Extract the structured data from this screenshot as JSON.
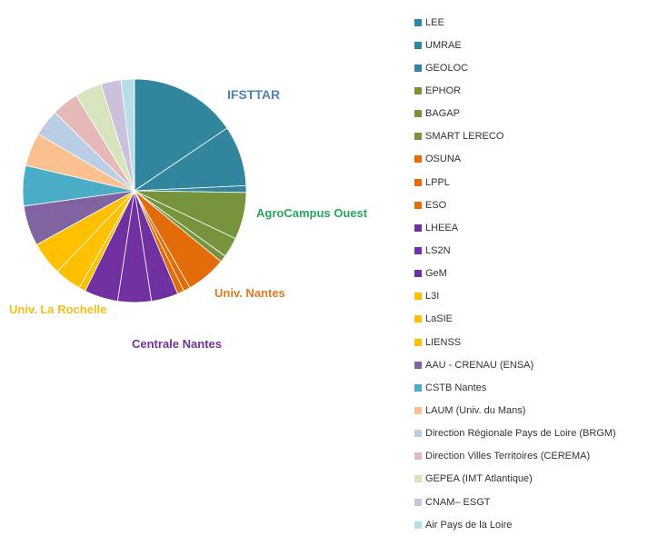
{
  "chart_data": {
    "type": "pie",
    "groups": [
      {
        "name": "IFSTTAR",
        "color": "#4F81BD"
      },
      {
        "name": "AgroCampus Ouest",
        "color": "#26A65B"
      },
      {
        "name": "Univ. Nantes",
        "color": "#E07B22"
      },
      {
        "name": "Centrale Nantes",
        "color": "#7030A0"
      },
      {
        "name": "Univ. La Rochelle",
        "color": "#F5BE14"
      }
    ],
    "slices": [
      {
        "label": "LEE",
        "value": 16,
        "color": "#31859C"
      },
      {
        "label": "UMRAE",
        "value": 9,
        "color": "#31859C"
      },
      {
        "label": "GEOLOC",
        "value": 1,
        "color": "#31859C"
      },
      {
        "label": "EPHOR",
        "value": 7,
        "color": "#77933C"
      },
      {
        "label": "BAGAP",
        "value": 3,
        "color": "#77933C"
      },
      {
        "label": "SMART LERECO",
        "value": 1,
        "color": "#77933C"
      },
      {
        "label": "OSUNA",
        "value": 6,
        "color": "#E36C09"
      },
      {
        "label": "LPPL",
        "value": 1,
        "color": "#E36C09"
      },
      {
        "label": "ESO",
        "value": 1,
        "color": "#E36C09"
      },
      {
        "label": "LHEEA",
        "value": 4,
        "color": "#7030A0"
      },
      {
        "label": "LS2N",
        "value": 5,
        "color": "#7030A0"
      },
      {
        "label": "GeM",
        "value": 5,
        "color": "#7030A0"
      },
      {
        "label": "L3I",
        "value": 1,
        "color": "#FFC000"
      },
      {
        "label": "LaSIE",
        "value": 4,
        "color": "#FFC000"
      },
      {
        "label": "LIENSS",
        "value": 5,
        "color": "#FFC000"
      },
      {
        "label": "AAU - CRENAU (ENSA)",
        "value": 6,
        "color": "#8064A2"
      },
      {
        "label": "CSTB Nantes",
        "value": 6,
        "color": "#4BACC6"
      },
      {
        "label": "LAUM (Univ. du Mans)",
        "value": 5,
        "color": "#FAC090"
      },
      {
        "label": "Direction Régionale Pays de Loire (BRGM)",
        "value": 4,
        "color": "#B9CDE5"
      },
      {
        "label": "Direction Villes Territoires (CEREMA)",
        "value": 4,
        "color": "#E6B9B8"
      },
      {
        "label": "GEPEA (IMT Atlantique)",
        "value": 4,
        "color": "#D7E4BD"
      },
      {
        "label": "CNAM– ESGT",
        "value": 3,
        "color": "#CCC1DA"
      },
      {
        "label": "Air Pays de la Loire",
        "value": 2,
        "color": "#B7DEE8"
      }
    ]
  }
}
